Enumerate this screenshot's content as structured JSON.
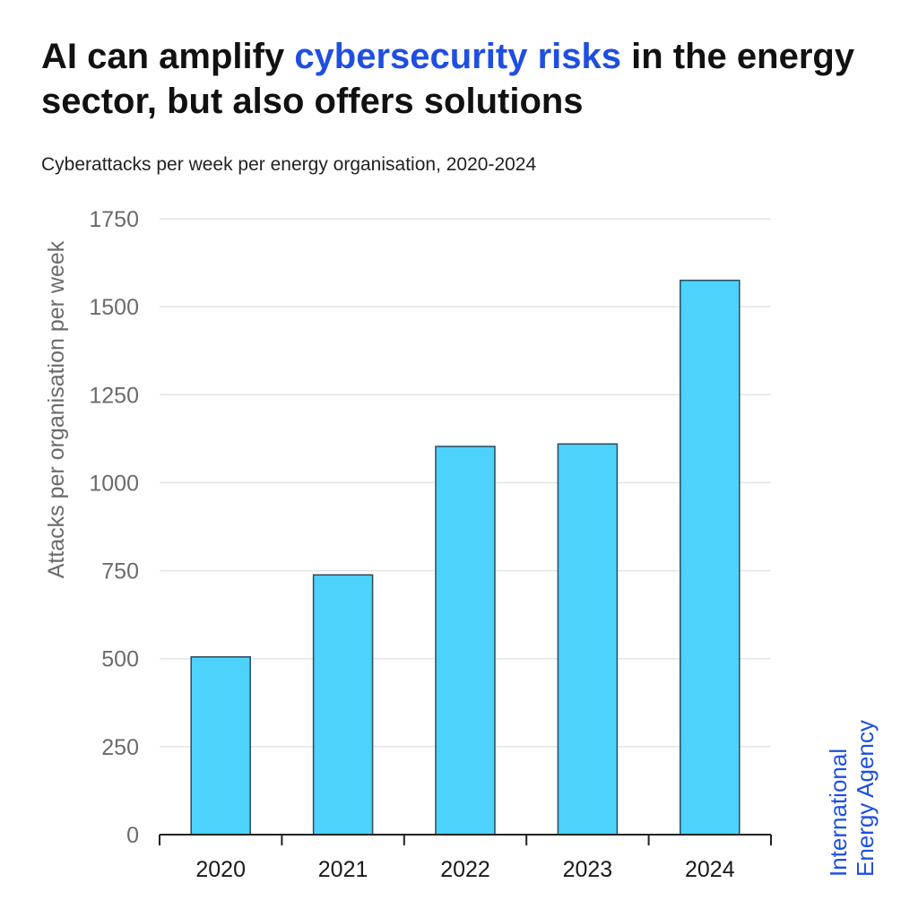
{
  "header": {
    "title_pre": "AI can amplify ",
    "title_highlight": "cybersecurity risks",
    "title_post": " in the energy sector, but also offers solutions",
    "subtitle": "Cyberattacks per week per energy organisation, 2020-2024"
  },
  "brand": {
    "line1": "International",
    "line2": "Energy Agency"
  },
  "colors": {
    "bar": "#4dd2fb",
    "highlight": "#1f4fe0"
  },
  "chart_data": {
    "type": "bar",
    "title": "AI can amplify cybersecurity risks in the energy sector, but also offers solutions",
    "subtitle": "Cyberattacks per week per energy organisation, 2020-2024",
    "xlabel": "",
    "ylabel": "Attacks per organisation per week",
    "categories": [
      "2020",
      "2021",
      "2022",
      "2023",
      "2024"
    ],
    "values": [
      505,
      738,
      1103,
      1110,
      1575
    ],
    "ylim": [
      0,
      1750
    ],
    "yticks": [
      0,
      250,
      500,
      750,
      1000,
      1250,
      1500,
      1750
    ],
    "grid": true
  }
}
